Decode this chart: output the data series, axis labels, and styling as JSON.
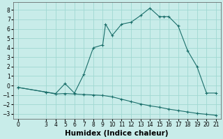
{
  "xlabel": "Humidex (Indice chaleur)",
  "background_color": "#c8ece9",
  "grid_color": "#a0d8d2",
  "line_color": "#1a6e6a",
  "xlim": [
    -0.5,
    21.5
  ],
  "ylim": [
    -3.5,
    8.8
  ],
  "xticks": [
    0,
    3,
    4,
    5,
    6,
    7,
    8,
    9,
    10,
    11,
    12,
    13,
    14,
    15,
    16,
    17,
    18,
    19,
    20,
    21
  ],
  "yticks": [
    -3,
    -2,
    -1,
    0,
    1,
    2,
    3,
    4,
    5,
    6,
    7,
    8
  ],
  "line1_x": [
    0,
    3,
    4,
    5,
    6,
    7,
    8,
    9,
    9.3,
    10,
    11,
    12,
    13,
    14,
    15,
    15.5,
    16,
    17,
    18,
    19,
    20,
    21
  ],
  "line1_y": [
    -0.2,
    -0.7,
    -0.85,
    0.2,
    -0.8,
    1.2,
    4.0,
    4.3,
    6.5,
    5.3,
    6.5,
    6.7,
    7.4,
    8.2,
    7.3,
    7.3,
    7.3,
    6.3,
    3.7,
    2.0,
    -0.8,
    -0.8
  ],
  "line2_x": [
    0,
    3,
    4,
    5,
    6,
    7,
    8,
    9,
    10,
    11,
    12,
    13,
    14,
    15,
    16,
    17,
    18,
    19,
    20,
    21
  ],
  "line2_y": [
    -0.2,
    -0.7,
    -0.9,
    -0.85,
    -0.9,
    -0.95,
    -1.0,
    -1.05,
    -1.2,
    -1.45,
    -1.7,
    -1.95,
    -2.15,
    -2.3,
    -2.5,
    -2.65,
    -2.8,
    -2.95,
    -3.05,
    -3.15
  ],
  "tick_fontsize": 5.5,
  "label_fontsize": 7.5
}
